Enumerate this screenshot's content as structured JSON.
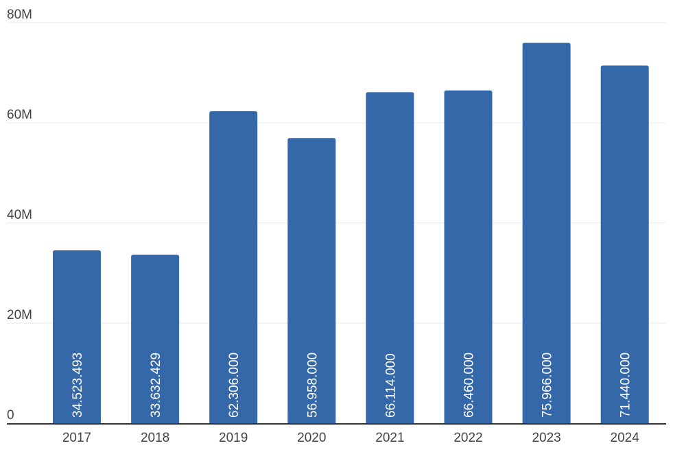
{
  "chart_data": {
    "type": "bar",
    "categories": [
      "2017",
      "2018",
      "2019",
      "2020",
      "2021",
      "2022",
      "2023",
      "2024"
    ],
    "values": [
      34523493,
      33632429,
      62306000,
      56958000,
      66114000,
      66460000,
      75966000,
      71440000
    ],
    "data_labels": [
      "34.523.493",
      "33.632.429",
      "62.306.000",
      "56.958.000",
      "66.114.000",
      "66.460.000",
      "75.966.000",
      "71.440.000"
    ],
    "y_ticks": [
      {
        "value": 0,
        "label": "0"
      },
      {
        "value": 20000000,
        "label": "20M"
      },
      {
        "value": 40000000,
        "label": "40M"
      },
      {
        "value": 60000000,
        "label": "60M"
      },
      {
        "value": 80000000,
        "label": "80M"
      }
    ],
    "ylim": [
      0,
      80000000
    ],
    "grid": true,
    "legend": "none",
    "bar_color": "#3468a8",
    "grid_color": "#e8e8e8",
    "axis_color": "#333333"
  }
}
